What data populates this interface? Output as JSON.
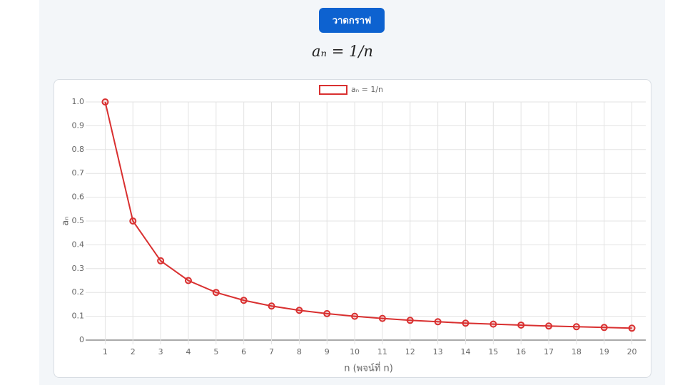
{
  "button": "วาดกราฟ",
  "formula": "aₙ = 1/n",
  "chart_data": {
    "type": "line",
    "categories": [
      "1",
      "2",
      "3",
      "4",
      "5",
      "6",
      "7",
      "8",
      "9",
      "10",
      "11",
      "12",
      "13",
      "14",
      "15",
      "16",
      "17",
      "18",
      "19",
      "20"
    ],
    "series": [
      {
        "name": "aₙ = 1/n",
        "color": "#d93030",
        "values": [
          1,
          0.5,
          0.333,
          0.25,
          0.2,
          0.167,
          0.143,
          0.125,
          0.111,
          0.1,
          0.091,
          0.083,
          0.077,
          0.071,
          0.067,
          0.063,
          0.059,
          0.056,
          0.053,
          0.05
        ]
      }
    ],
    "ylim": [
      0,
      1
    ],
    "yticks": [
      0,
      0.1,
      0.2,
      0.3,
      0.4,
      0.5,
      0.6,
      0.7,
      0.8,
      0.9,
      {
        "value": 1,
        "label": "1.0"
      }
    ],
    "xlabel": "n (พจน์ที่ n)",
    "ylabel": "aₙ",
    "grid": true,
    "legend": "top"
  }
}
